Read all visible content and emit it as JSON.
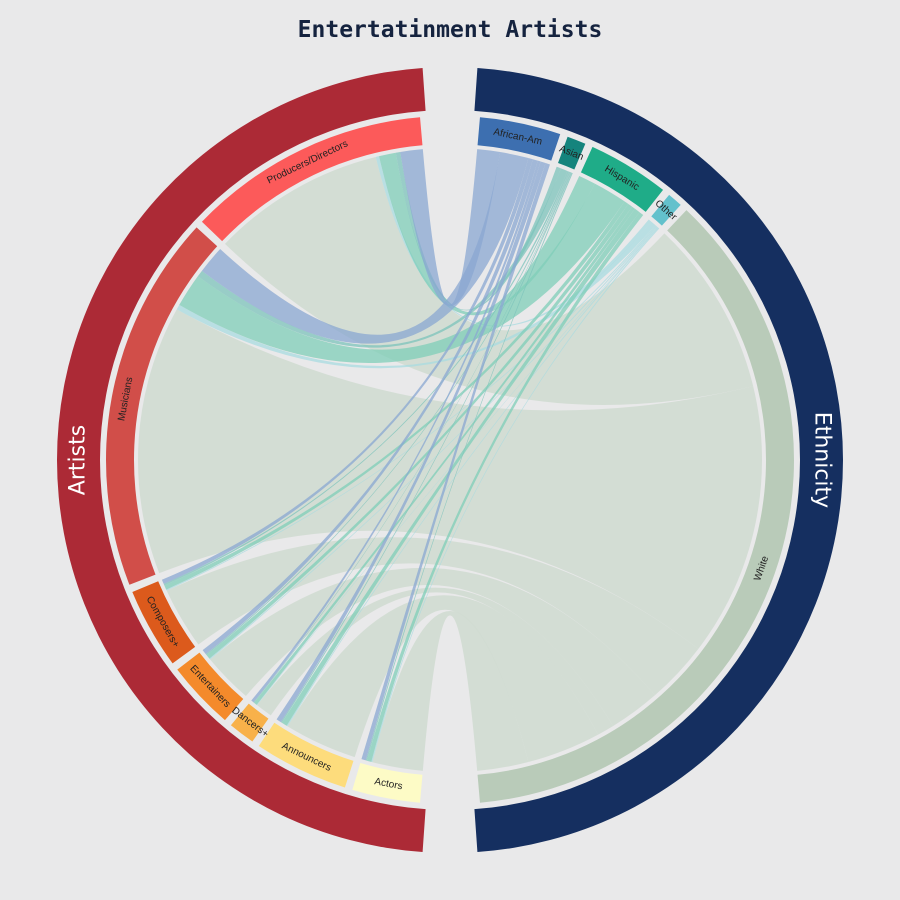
{
  "chart_data": {
    "type": "chord",
    "title": "Entertatinment Artists",
    "groups": [
      {
        "name": "Artists",
        "color": "#ac2a36"
      },
      {
        "name": "Ethnicity",
        "color": "#152f60"
      }
    ],
    "sources": [
      {
        "name": "Producers/Directors",
        "color": "#fc5a5a"
      },
      {
        "name": "Musicians",
        "color": "#d14e49"
      },
      {
        "name": "Composers+",
        "color": "#dc5a1c"
      },
      {
        "name": "Entertainers",
        "color": "#f48a2b"
      },
      {
        "name": "Dancers+",
        "color": "#f8b14a"
      },
      {
        "name": "Announcers",
        "color": "#fddc7c"
      },
      {
        "name": "Actors",
        "color": "#fdfbc6"
      }
    ],
    "targets": [
      {
        "name": "African-Am",
        "color": "#3d6fb0",
        "ribbon": "#8aa7d1"
      },
      {
        "name": "Asian",
        "color": "#15847d",
        "ribbon": "#7cc3bb"
      },
      {
        "name": "Hispanic",
        "color": "#1fac88",
        "ribbon": "#7fcdb8"
      },
      {
        "name": "Other",
        "color": "#63c1cc",
        "ribbon": "#a8dbe0"
      },
      {
        "name": "White",
        "color": "#b9cbb9",
        "ribbon": "#d0dbd2"
      }
    ],
    "matrix": [
      [
        4,
        0.8,
        3,
        0.6,
        31
      ],
      [
        5,
        1.2,
        6,
        0.9,
        48
      ],
      [
        0.8,
        0.3,
        0.8,
        0.2,
        11
      ],
      [
        0.9,
        0.2,
        0.8,
        0.2,
        9
      ],
      [
        0.5,
        0.1,
        0.6,
        0.1,
        3
      ],
      [
        0.9,
        0.2,
        1,
        0.2,
        13
      ],
      [
        0.8,
        0.2,
        0.8,
        0.2,
        9
      ]
    ]
  }
}
